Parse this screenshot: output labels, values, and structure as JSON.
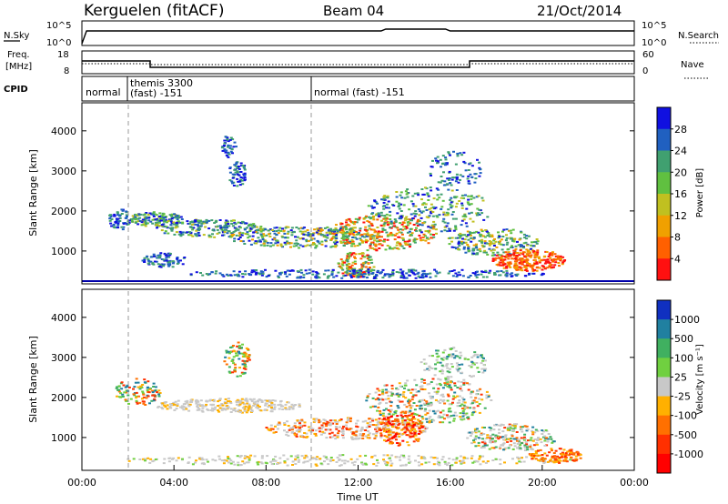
{
  "header": {
    "station": "Kerguelen (fitACF)",
    "beam": "Beam 04",
    "date": "21/Oct/2014"
  },
  "panels": {
    "nsky": {
      "left_label": "N.Sky",
      "left_ticks": [
        "10^5",
        "10^0"
      ],
      "right_ticks": [
        "10^5",
        "10^0"
      ],
      "right_label": "N.Search"
    },
    "freq": {
      "left_label_1": "Freq.",
      "left_label_2": "[MHz]",
      "left_ticks": [
        "18",
        "8"
      ],
      "right_ticks": [
        "60",
        "0"
      ],
      "right_label": "Nave"
    },
    "cpid": {
      "label": "CPID",
      "segments": [
        {
          "text": "normal",
          "start_hour": 0
        },
        {
          "text": "themis 3300",
          "start_hour": 2.0
        },
        {
          "text": "(fast) -151",
          "start_hour": 2.0
        },
        {
          "text": "normal (fast) -151",
          "start_hour": 10.0
        }
      ]
    }
  },
  "chart_data": [
    {
      "type": "heatmap",
      "name": "power",
      "xlabel": "",
      "ylabel": "Slant Range [km]",
      "xlim_hours": [
        0,
        24
      ],
      "ylim": [
        180,
        4700
      ],
      "yticks": [
        "1000",
        "2000",
        "3000",
        "4000"
      ],
      "colorbar": {
        "label": "Power [dB]",
        "ticks": [
          "28",
          "24",
          "20",
          "16",
          "12",
          "8",
          "4"
        ],
        "colors": [
          "#1010e0",
          "#2060c0",
          "#40a070",
          "#60c040",
          "#c0c020",
          "#f0a000",
          "#ff6000",
          "#ff1010"
        ]
      }
    },
    {
      "type": "heatmap",
      "name": "velocity",
      "xlabel": "Time UT",
      "ylabel": "Slant Range [km]",
      "xlim_hours": [
        0,
        24
      ],
      "ylim": [
        180,
        4700
      ],
      "yticks": [
        "1000",
        "2000",
        "3000",
        "4000"
      ],
      "xticks": [
        "00:00",
        "04:00",
        "08:00",
        "12:00",
        "16:00",
        "20:00",
        "00:00"
      ],
      "colorbar": {
        "label": "Velocity [m s⁻¹]",
        "ticks": [
          "1000",
          "500",
          "100",
          "25",
          "-25",
          "-100",
          "-500",
          "-1000"
        ],
        "colors": [
          "#1030c0",
          "#2080a0",
          "#40b060",
          "#70d040",
          "#c8c8c8",
          "#ffb000",
          "#ff7000",
          "#ff3000",
          "#ff0000"
        ]
      }
    }
  ]
}
